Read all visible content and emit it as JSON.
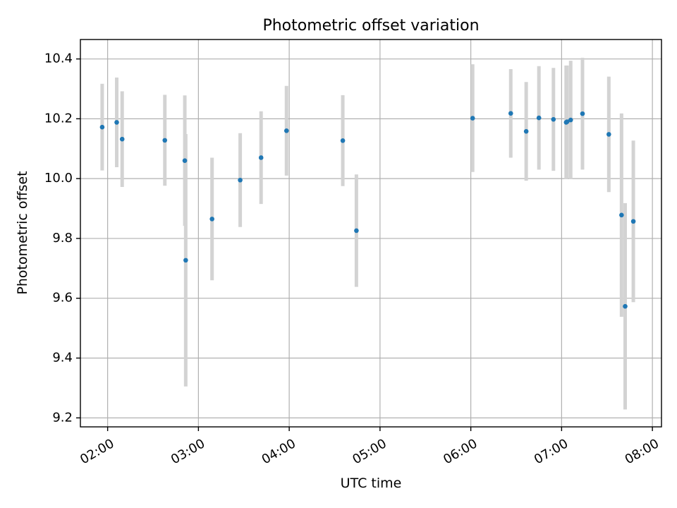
{
  "chart_data": {
    "type": "scatter",
    "title": "Photometric offset variation",
    "xlabel": "UTC time",
    "ylabel": "Photometric offset",
    "x_unit": "hours UTC",
    "xlim": [
      1.7,
      8.1
    ],
    "ylim": [
      9.17,
      10.465
    ],
    "x_ticks": [
      {
        "value": 2,
        "label": "02:00"
      },
      {
        "value": 3,
        "label": "03:00"
      },
      {
        "value": 4,
        "label": "04:00"
      },
      {
        "value": 5,
        "label": "05:00"
      },
      {
        "value": 6,
        "label": "06:00"
      },
      {
        "value": 7,
        "label": "07:00"
      },
      {
        "value": 8,
        "label": "08:00"
      }
    ],
    "y_ticks": [
      {
        "value": 9.2,
        "label": "9.2"
      },
      {
        "value": 9.4,
        "label": "9.4"
      },
      {
        "value": 9.6,
        "label": "9.6"
      },
      {
        "value": 9.8,
        "label": "9.8"
      },
      {
        "value": 10.0,
        "label": "10.0"
      },
      {
        "value": 10.2,
        "label": "10.2"
      },
      {
        "value": 10.4,
        "label": "10.4"
      }
    ],
    "grid": true,
    "marker_color": "#1f77b4",
    "errorbar_color": "#d3d3d3",
    "points": [
      {
        "x": 1.94,
        "y": 10.172,
        "err": 0.145
      },
      {
        "x": 2.1,
        "y": 10.188,
        "err": 0.15
      },
      {
        "x": 2.16,
        "y": 10.132,
        "err": 0.16
      },
      {
        "x": 2.63,
        "y": 10.128,
        "err": 0.152
      },
      {
        "x": 2.85,
        "y": 10.06,
        "err": 0.218
      },
      {
        "x": 2.86,
        "y": 9.727,
        "err": 0.422
      },
      {
        "x": 3.15,
        "y": 9.865,
        "err": 0.205
      },
      {
        "x": 3.46,
        "y": 9.995,
        "err": 0.157
      },
      {
        "x": 3.69,
        "y": 10.07,
        "err": 0.155
      },
      {
        "x": 3.97,
        "y": 10.16,
        "err": 0.15
      },
      {
        "x": 4.59,
        "y": 10.127,
        "err": 0.152
      },
      {
        "x": 4.74,
        "y": 9.826,
        "err": 0.188
      },
      {
        "x": 6.02,
        "y": 10.202,
        "err": 0.18
      },
      {
        "x": 6.44,
        "y": 10.218,
        "err": 0.148
      },
      {
        "x": 6.61,
        "y": 10.158,
        "err": 0.165
      },
      {
        "x": 6.75,
        "y": 10.203,
        "err": 0.173
      },
      {
        "x": 6.91,
        "y": 10.198,
        "err": 0.172
      },
      {
        "x": 7.05,
        "y": 10.188,
        "err": 0.19
      },
      {
        "x": 7.06,
        "y": 10.19,
        "err": 0.188
      },
      {
        "x": 7.1,
        "y": 10.196,
        "err": 0.198
      },
      {
        "x": 7.23,
        "y": 10.217,
        "err": 0.187
      },
      {
        "x": 7.52,
        "y": 10.148,
        "err": 0.193
      },
      {
        "x": 7.66,
        "y": 9.878,
        "err": 0.34
      },
      {
        "x": 7.7,
        "y": 9.573,
        "err": 0.345
      },
      {
        "x": 7.79,
        "y": 9.857,
        "err": 0.27
      }
    ]
  }
}
